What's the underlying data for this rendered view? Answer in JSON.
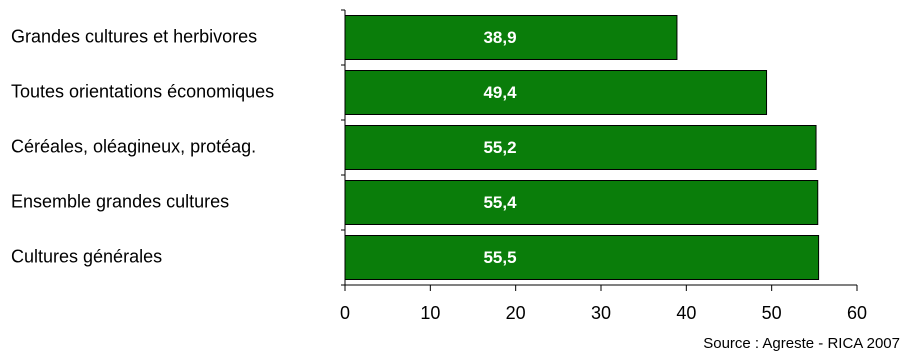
{
  "chart_data": {
    "type": "bar",
    "orientation": "horizontal",
    "categories": [
      "Grandes cultures et herbivores",
      "Toutes orientations économiques",
      "Céréales, oléagineux, protéag.",
      "Ensemble grandes cultures",
      "Cultures générales"
    ],
    "values": [
      38.9,
      49.4,
      55.2,
      55.4,
      55.5
    ],
    "value_labels": [
      "38,9",
      "49,4",
      "55,2",
      "55,4",
      "55,5"
    ],
    "xlim": [
      0,
      60
    ],
    "xticks": [
      0,
      10,
      20,
      30,
      40,
      50,
      60
    ],
    "bar_color": "#0a7d0a",
    "bar_edge_color": "#000000",
    "grid": false,
    "legend": "none"
  },
  "source": "Source : Agreste - RICA 2007"
}
